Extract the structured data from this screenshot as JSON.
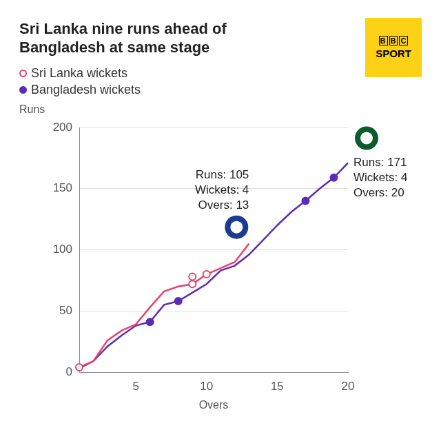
{
  "chart_data": {
    "type": "line",
    "title": "Sri Lanka nine runs ahead of Bangladesh at same stage",
    "x_label": "Overs",
    "y_label": "Runs",
    "x": [
      1,
      2,
      3,
      4,
      5,
      6,
      7,
      8,
      9,
      10,
      11,
      12,
      13,
      14,
      15,
      16,
      17,
      18,
      19,
      20
    ],
    "xlim": [
      1,
      20
    ],
    "xticks": [
      5,
      10,
      15,
      20
    ],
    "ylim": [
      0,
      200
    ],
    "yticks": [
      0,
      50,
      100,
      150,
      200
    ],
    "grid": true,
    "series": [
      {
        "type": "line",
        "color": "#e8436b",
        "values": [
          4,
          9,
          26,
          34,
          39,
          53,
          66,
          70,
          72,
          80,
          85,
          90,
          105,
          null,
          null,
          null,
          null,
          null,
          null,
          null
        ]
      },
      {
        "type": "line",
        "color": "#5b2cb5",
        "values": [
          3,
          9,
          21,
          30,
          38,
          41,
          55,
          58,
          65,
          72,
          83,
          87,
          96,
          108,
          120,
          131,
          140,
          150,
          159,
          171
        ]
      },
      {
        "type": "scatter",
        "name": "Sri Lanka wickets",
        "color": "#e8436b",
        "marker": "circle-open",
        "x": [
          1,
          9,
          9,
          10
        ],
        "values": [
          4,
          72,
          78,
          80
        ]
      },
      {
        "type": "scatter",
        "name": "Bangladesh wickets",
        "color": "#5b2cb5",
        "marker": "circle",
        "x": [
          6,
          8,
          17,
          19
        ],
        "values": [
          41,
          58,
          140,
          159
        ]
      }
    ],
    "annotations": [
      {
        "x": 13,
        "y": 105,
        "text": [
          "Runs: 105",
          "Wickets: 4",
          "Overs: 13"
        ]
      },
      {
        "x": 20,
        "y": 171,
        "text": [
          "Runs: 171",
          "Wickets: 4",
          "Overs: 20"
        ]
      }
    ],
    "logo": [
      "BBC",
      "SPORT"
    ]
  }
}
